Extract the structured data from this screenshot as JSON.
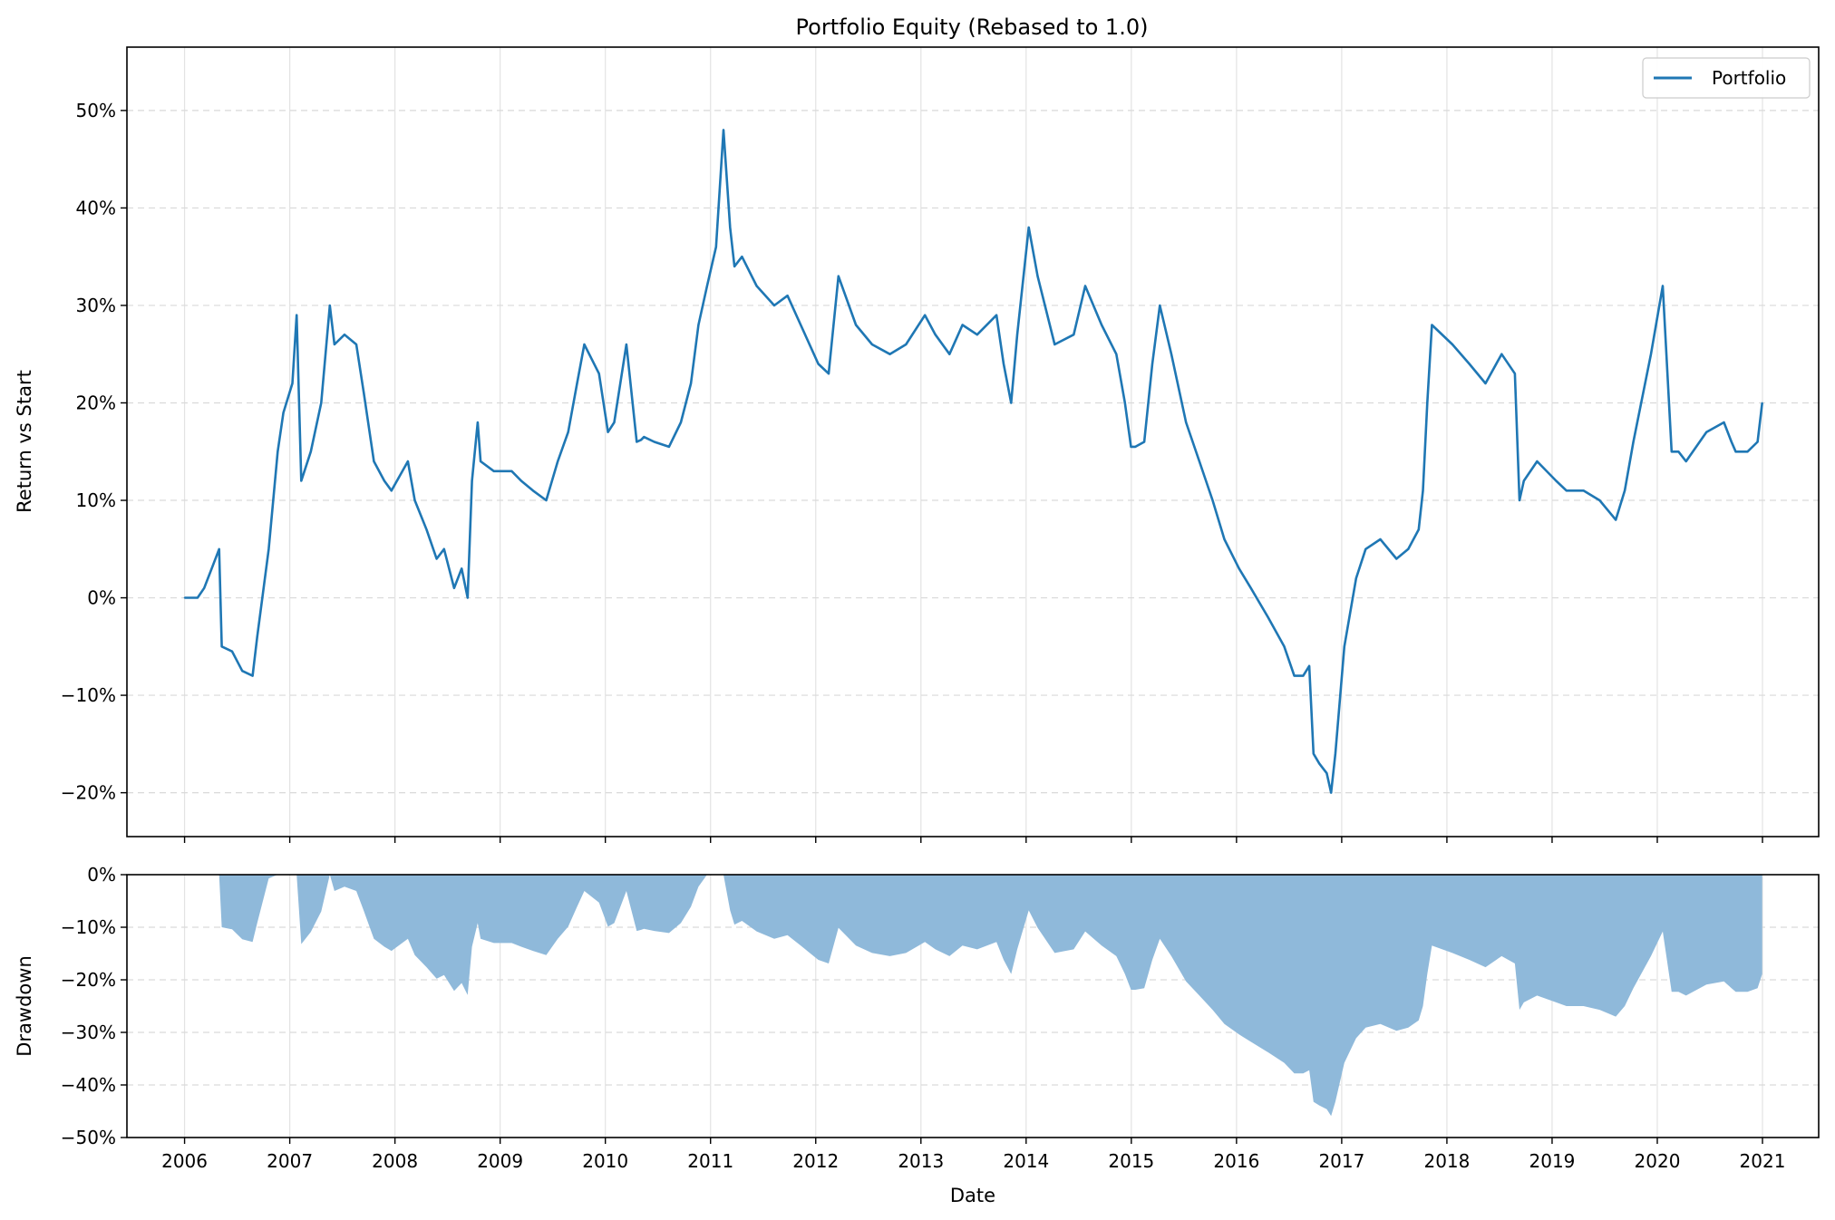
{
  "chart_data": [
    {
      "type": "line",
      "title": "Portfolio Equity (Rebased to 1.0)",
      "xlabel": "",
      "ylabel": "Return vs Start",
      "y_unit": "percent",
      "xlim": [
        "2005-06-15",
        "2021-07-15"
      ],
      "ylim": [
        -24.5,
        56.5
      ],
      "x_ticks": [
        "2006",
        "2007",
        "2008",
        "2009",
        "2010",
        "2011",
        "2012",
        "2013",
        "2014",
        "2015",
        "2016",
        "2017",
        "2018",
        "2019",
        "2020",
        "2021"
      ],
      "y_ticks": [
        "−20%",
        "−10%",
        "0%",
        "10%",
        "20%",
        "30%",
        "40%",
        "50%"
      ],
      "grid": true,
      "legend": {
        "position": "top-right",
        "entries": [
          "Portfolio"
        ]
      },
      "series": [
        {
          "name": "Portfolio",
          "color": "#1f77b4",
          "x": [
            "2006-01-01",
            "2006-02-15",
            "2006-03-10",
            "2006-04-05",
            "2006-05-01",
            "2006-05-10",
            "2006-06-15",
            "2006-07-20",
            "2006-08-25",
            "2006-09-10",
            "2006-10-20",
            "2006-11-20",
            "2006-12-10",
            "2007-01-10",
            "2007-01-25",
            "2007-02-10",
            "2007-03-15",
            "2007-04-20",
            "2007-05-20",
            "2007-06-05",
            "2007-07-10",
            "2007-08-20",
            "2007-09-15",
            "2007-10-20",
            "2007-11-25",
            "2007-12-20",
            "2008-02-15",
            "2008-03-10",
            "2008-04-20",
            "2008-05-25",
            "2008-06-20",
            "2008-07-25",
            "2008-08-20",
            "2008-09-10",
            "2008-09-25",
            "2008-10-15",
            "2008-10-25",
            "2008-12-10",
            "2009-02-10",
            "2009-03-15",
            "2009-04-25",
            "2009-06-10",
            "2009-07-20",
            "2009-08-25",
            "2009-09-25",
            "2009-10-20",
            "2009-12-10",
            "2010-01-10",
            "2010-02-01",
            "2010-03-15",
            "2010-04-20",
            "2010-05-05",
            "2010-05-15",
            "2010-06-20",
            "2010-08-10",
            "2010-09-20",
            "2010-10-25",
            "2010-11-20",
            "2010-12-20",
            "2011-01-20",
            "2011-02-15",
            "2011-03-10",
            "2011-03-25",
            "2011-04-20",
            "2011-06-10",
            "2011-08-10",
            "2011-09-25",
            "2011-11-10",
            "2012-01-10",
            "2012-02-15",
            "2012-03-20",
            "2012-05-20",
            "2012-07-15",
            "2012-09-15",
            "2012-11-10",
            "2013-01-15",
            "2013-02-20",
            "2013-04-10",
            "2013-05-25",
            "2013-07-15",
            "2013-09-20",
            "2013-10-15",
            "2013-11-10",
            "2013-12-01",
            "2014-01-10",
            "2014-02-10",
            "2014-04-10",
            "2014-06-15",
            "2014-07-25",
            "2014-09-20",
            "2014-11-10",
            "2014-12-10",
            "2014-12-31",
            "2015-01-15",
            "2015-02-15",
            "2015-03-15",
            "2015-04-10",
            "2015-05-20",
            "2015-07-10",
            "2015-08-25",
            "2015-10-10",
            "2015-11-20",
            "2016-01-10",
            "2016-02-20",
            "2016-04-20",
            "2016-06-15",
            "2016-07-20",
            "2016-08-20",
            "2016-09-10",
            "2016-09-25",
            "2016-10-15",
            "2016-11-10",
            "2016-11-25",
            "2016-12-10",
            "2017-01-10",
            "2017-02-20",
            "2017-03-25",
            "2017-05-15",
            "2017-07-10",
            "2017-08-20",
            "2017-09-25",
            "2017-10-10",
            "2017-10-25",
            "2017-11-10",
            "2018-01-20",
            "2018-03-20",
            "2018-05-15",
            "2018-07-10",
            "2018-08-25",
            "2018-09-10",
            "2018-09-25",
            "2018-11-10",
            "2019-01-15",
            "2019-02-20",
            "2019-04-20",
            "2019-06-15",
            "2019-08-10",
            "2019-09-10",
            "2019-10-10",
            "2019-12-10",
            "2020-01-20",
            "2020-02-20",
            "2020-03-15",
            "2020-04-10",
            "2020-06-20",
            "2020-08-20",
            "2020-09-15",
            "2020-09-30",
            "2020-11-10",
            "2020-12-15",
            "2020-12-31"
          ],
          "y": [
            0,
            0,
            1,
            3,
            5,
            -5,
            -5.5,
            -7.5,
            -8,
            -4,
            5,
            15,
            19,
            22,
            29,
            12,
            15,
            20,
            30,
            26,
            27,
            26,
            21,
            14,
            12,
            11,
            14,
            10,
            7,
            4,
            5,
            1,
            3,
            0,
            12,
            18,
            14,
            13,
            13,
            12,
            11,
            10,
            14,
            17,
            22,
            26,
            23,
            17,
            18,
            26,
            16,
            16.2,
            16.5,
            16,
            15.5,
            18,
            22,
            28,
            32,
            36,
            48,
            38,
            34,
            35,
            32,
            30,
            31,
            28,
            24,
            23,
            33,
            28,
            26,
            25,
            26,
            29,
            27,
            25,
            28,
            27,
            29,
            24,
            20,
            27,
            38,
            33,
            26,
            27,
            32,
            28,
            25,
            20,
            15.5,
            15.5,
            16,
            24,
            30,
            25,
            18,
            14,
            10,
            6,
            3,
            1,
            -2,
            -5,
            -8,
            -8,
            -7,
            -16,
            -17,
            -18,
            -20,
            -16,
            -5,
            2,
            5,
            6,
            4,
            5,
            7,
            11,
            20,
            28,
            26,
            24,
            22,
            25,
            23,
            10,
            12,
            14,
            12,
            11,
            11,
            10,
            8,
            11,
            16,
            25,
            32,
            15,
            15,
            14,
            17,
            18,
            16,
            15,
            15,
            16,
            20
          ]
        }
      ]
    },
    {
      "type": "area",
      "title": "",
      "xlabel": "Date",
      "ylabel": "Drawdown",
      "y_unit": "percent",
      "xlim": [
        "2005-06-15",
        "2021-07-15"
      ],
      "ylim": [
        -50,
        0
      ],
      "x_ticks": [
        "2006",
        "2007",
        "2008",
        "2009",
        "2010",
        "2011",
        "2012",
        "2013",
        "2014",
        "2015",
        "2016",
        "2017",
        "2018",
        "2019",
        "2020",
        "2021"
      ],
      "y_ticks": [
        "−50%",
        "−40%",
        "−30%",
        "−20%",
        "−10%",
        "0%"
      ],
      "grid": true,
      "series": [
        {
          "name": "",
          "color": "#1f77b4",
          "fill_color": "#8fb9da",
          "x": [
            "2006-01-01",
            "2006-02-15",
            "2006-03-10",
            "2006-04-05",
            "2006-05-01",
            "2006-05-10",
            "2006-06-15",
            "2006-07-20",
            "2006-08-25",
            "2006-09-10",
            "2006-10-20",
            "2006-11-20",
            "2006-12-10",
            "2007-01-10",
            "2007-01-25",
            "2007-02-10",
            "2007-03-15",
            "2007-04-20",
            "2007-05-20",
            "2007-06-05",
            "2007-07-10",
            "2007-08-20",
            "2007-09-15",
            "2007-10-20",
            "2007-11-25",
            "2007-12-20",
            "2008-02-15",
            "2008-03-10",
            "2008-04-20",
            "2008-05-25",
            "2008-06-20",
            "2008-07-25",
            "2008-08-20",
            "2008-09-10",
            "2008-09-25",
            "2008-10-15",
            "2008-10-25",
            "2008-12-10",
            "2009-02-10",
            "2009-03-15",
            "2009-04-25",
            "2009-06-10",
            "2009-07-20",
            "2009-08-25",
            "2009-09-25",
            "2009-10-20",
            "2009-12-10",
            "2010-01-10",
            "2010-02-01",
            "2010-03-15",
            "2010-04-20",
            "2010-05-05",
            "2010-05-15",
            "2010-06-20",
            "2010-08-10",
            "2010-09-20",
            "2010-10-25",
            "2010-11-20",
            "2010-12-20",
            "2011-01-20",
            "2011-02-15",
            "2011-03-10",
            "2011-03-25",
            "2011-04-20",
            "2011-06-10",
            "2011-08-10",
            "2011-09-25",
            "2011-11-10",
            "2012-01-10",
            "2012-02-15",
            "2012-03-20",
            "2012-05-20",
            "2012-07-15",
            "2012-09-15",
            "2012-11-10",
            "2013-01-15",
            "2013-02-20",
            "2013-04-10",
            "2013-05-25",
            "2013-07-15",
            "2013-09-20",
            "2013-10-15",
            "2013-11-10",
            "2013-12-01",
            "2014-01-10",
            "2014-02-10",
            "2014-04-10",
            "2014-06-15",
            "2014-07-25",
            "2014-09-20",
            "2014-11-10",
            "2014-12-10",
            "2014-12-31",
            "2015-01-15",
            "2015-02-15",
            "2015-03-15",
            "2015-04-10",
            "2015-05-20",
            "2015-07-10",
            "2015-08-25",
            "2015-10-10",
            "2015-11-20",
            "2016-01-10",
            "2016-02-20",
            "2016-04-20",
            "2016-06-15",
            "2016-07-20",
            "2016-08-20",
            "2016-09-10",
            "2016-09-25",
            "2016-10-15",
            "2016-11-10",
            "2016-11-25",
            "2016-12-10",
            "2017-01-10",
            "2017-02-20",
            "2017-03-25",
            "2017-05-15",
            "2017-07-10",
            "2017-08-20",
            "2017-09-25",
            "2017-10-10",
            "2017-10-25",
            "2017-11-10",
            "2018-01-20",
            "2018-03-20",
            "2018-05-15",
            "2018-07-10",
            "2018-08-25",
            "2018-09-10",
            "2018-09-25",
            "2018-11-10",
            "2019-01-15",
            "2019-02-20",
            "2019-04-20",
            "2019-06-15",
            "2019-08-10",
            "2019-09-10",
            "2019-10-10",
            "2019-12-10",
            "2020-01-20",
            "2020-02-20",
            "2020-03-15",
            "2020-04-10",
            "2020-06-20",
            "2020-08-20",
            "2020-09-15",
            "2020-09-30",
            "2020-11-10",
            "2020-12-15",
            "2020-12-31"
          ],
          "y": [
            0,
            0,
            0,
            0,
            0,
            -10,
            -10.4,
            -12.3,
            -12.8,
            -9.2,
            -0.7,
            0,
            0,
            0,
            0,
            -13.2,
            -10.9,
            -7,
            0,
            -3.1,
            -2.3,
            -3.1,
            -6.9,
            -12.2,
            -13.7,
            -14.5,
            -12.2,
            -15.3,
            -17.6,
            -19.8,
            -19.1,
            -22.1,
            -20.6,
            -22.9,
            -13.7,
            -9.2,
            -12.2,
            -13,
            -13,
            -13.7,
            -14.5,
            -15.3,
            -12.2,
            -9.9,
            -6.1,
            -3.1,
            -5.3,
            -9.9,
            -9.2,
            -3.1,
            -10.7,
            -10.5,
            -10.3,
            -10.7,
            -11.1,
            -9.2,
            -6.1,
            -2.3,
            0,
            0,
            0,
            -6.8,
            -9.5,
            -8.8,
            -10.8,
            -12.2,
            -11.5,
            -13.5,
            -16.2,
            -16.9,
            -10.1,
            -13.5,
            -14.9,
            -15.5,
            -14.9,
            -12.8,
            -14.2,
            -15.5,
            -13.5,
            -14.2,
            -12.8,
            -16.2,
            -18.9,
            -14.2,
            -6.8,
            -10.1,
            -14.9,
            -14.2,
            -10.8,
            -13.5,
            -15.5,
            -18.9,
            -21.9,
            -21.9,
            -21.6,
            -16.2,
            -12.2,
            -15.5,
            -20.3,
            -23,
            -25.7,
            -28.4,
            -30.4,
            -31.8,
            -33.8,
            -35.8,
            -37.8,
            -37.8,
            -37.2,
            -43.2,
            -43.9,
            -44.6,
            -45.9,
            -43.2,
            -35.8,
            -31.1,
            -29.1,
            -28.4,
            -29.7,
            -29.1,
            -27.7,
            -25,
            -18.9,
            -13.5,
            -14.9,
            -16.2,
            -17.6,
            -15.5,
            -16.9,
            -25.7,
            -24.3,
            -23,
            -24.3,
            -25,
            -25,
            -25.7,
            -27,
            -25,
            -21.6,
            -15.5,
            -10.8,
            -22.3,
            -22.3,
            -23,
            -20.9,
            -20.3,
            -21.6,
            -22.3,
            -22.3,
            -21.6,
            -18.9
          ]
        }
      ]
    }
  ]
}
